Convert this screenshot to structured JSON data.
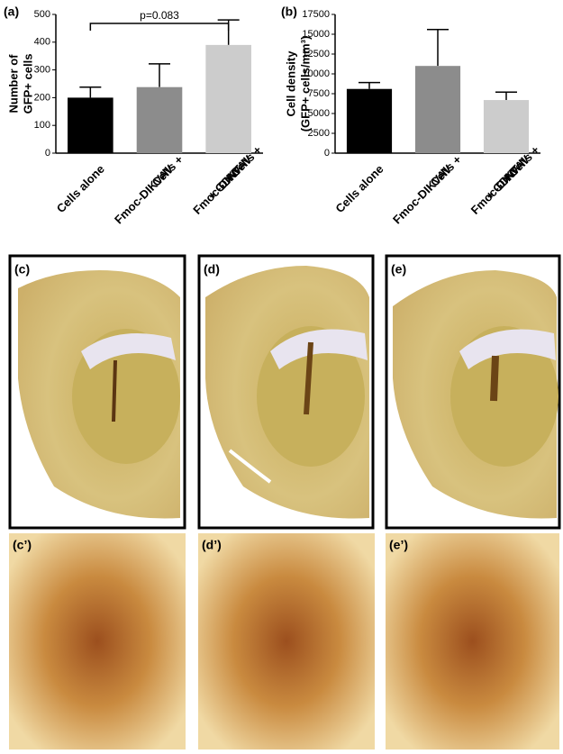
{
  "chart_data": [
    {
      "type": "bar",
      "panel": "(a)",
      "ylabel": [
        "Number of",
        "GFP+ cells"
      ],
      "categories": [
        [
          "Cells alone"
        ],
        [
          "Cells +",
          "Fmoc-DIKVAV"
        ],
        [
          "Cells +",
          "Fmoc-DIKVAV",
          "+ GDNF"
        ]
      ],
      "values": [
        200,
        238,
        390
      ],
      "errors": [
        38,
        84,
        90
      ],
      "colors": [
        "#000000",
        "#8c8c8c",
        "#cccccc"
      ],
      "ylim": [
        0,
        500
      ],
      "yticks": [
        0,
        100,
        200,
        300,
        400,
        500
      ],
      "annotation": "p=0.083"
    },
    {
      "type": "bar",
      "panel": "(b)",
      "ylabel": [
        "Cell density",
        "(GFP+ cells/mm³)"
      ],
      "categories": [
        [
          "Cells alone"
        ],
        [
          "Cells +",
          "Fmoc-DIKVAV"
        ],
        [
          "Cells +",
          "Fmoc-DIKVAV",
          "+ GDNF"
        ]
      ],
      "values": [
        8100,
        11000,
        6700
      ],
      "errors": [
        800,
        4600,
        1000
      ],
      "colors": [
        "#000000",
        "#8c8c8c",
        "#cccccc"
      ],
      "ylim": [
        0,
        17500
      ],
      "yticks": [
        0,
        2500,
        5000,
        7500,
        10000,
        12500,
        15000,
        17500
      ]
    }
  ],
  "panels": [
    {
      "label": "(c)"
    },
    {
      "label": "(d)"
    },
    {
      "label": "(e)"
    },
    {
      "label": "(c’)"
    },
    {
      "label": "(d’)"
    },
    {
      "label": "(e’)"
    }
  ]
}
